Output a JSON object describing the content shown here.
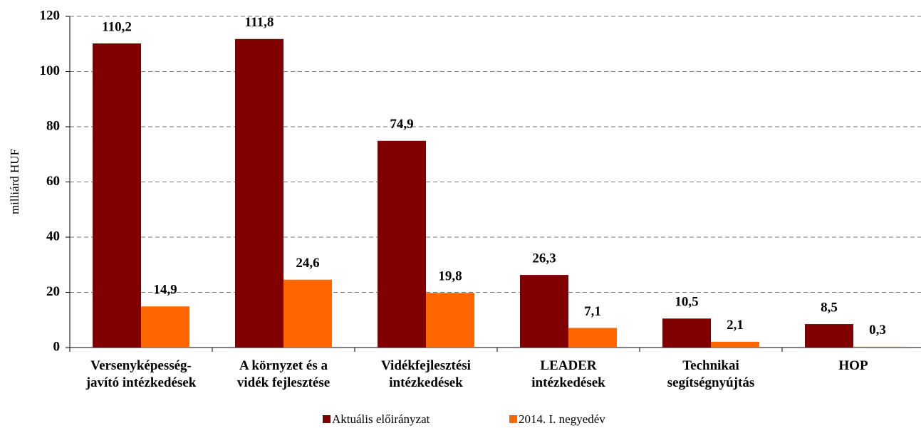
{
  "chart_data": {
    "type": "bar",
    "y_label": "milliárd HUF",
    "categories": [
      "Versenyképesség-\njavító intézkedések",
      "A környzet és a\nvidék fejlesztése",
      "Vidékfejlesztési\nintézkedések",
      "LEADER\nintézkedések",
      "Technikai\nsegítségnyújtás",
      "HOP"
    ],
    "series": [
      {
        "name": "Aktuális előirányzat",
        "color": "#800000",
        "values": [
          110.2,
          111.8,
          74.9,
          26.3,
          10.5,
          8.5
        ],
        "value_labels": [
          "110,2",
          "111,8",
          "74,9",
          "26,3",
          "10,5",
          "8,5"
        ]
      },
      {
        "name": "2014. I. negyedév",
        "color": "#ff6600",
        "values": [
          14.9,
          24.6,
          19.8,
          7.1,
          2.1,
          0.3
        ],
        "value_labels": [
          "14,9",
          "24,6",
          "19,8",
          "7,1",
          "2,1",
          "0,3"
        ]
      }
    ],
    "ylim": [
      0,
      120
    ],
    "yticks": [
      0,
      20,
      40,
      60,
      80,
      100,
      120
    ],
    "grid": true,
    "legend": "bottom"
  }
}
